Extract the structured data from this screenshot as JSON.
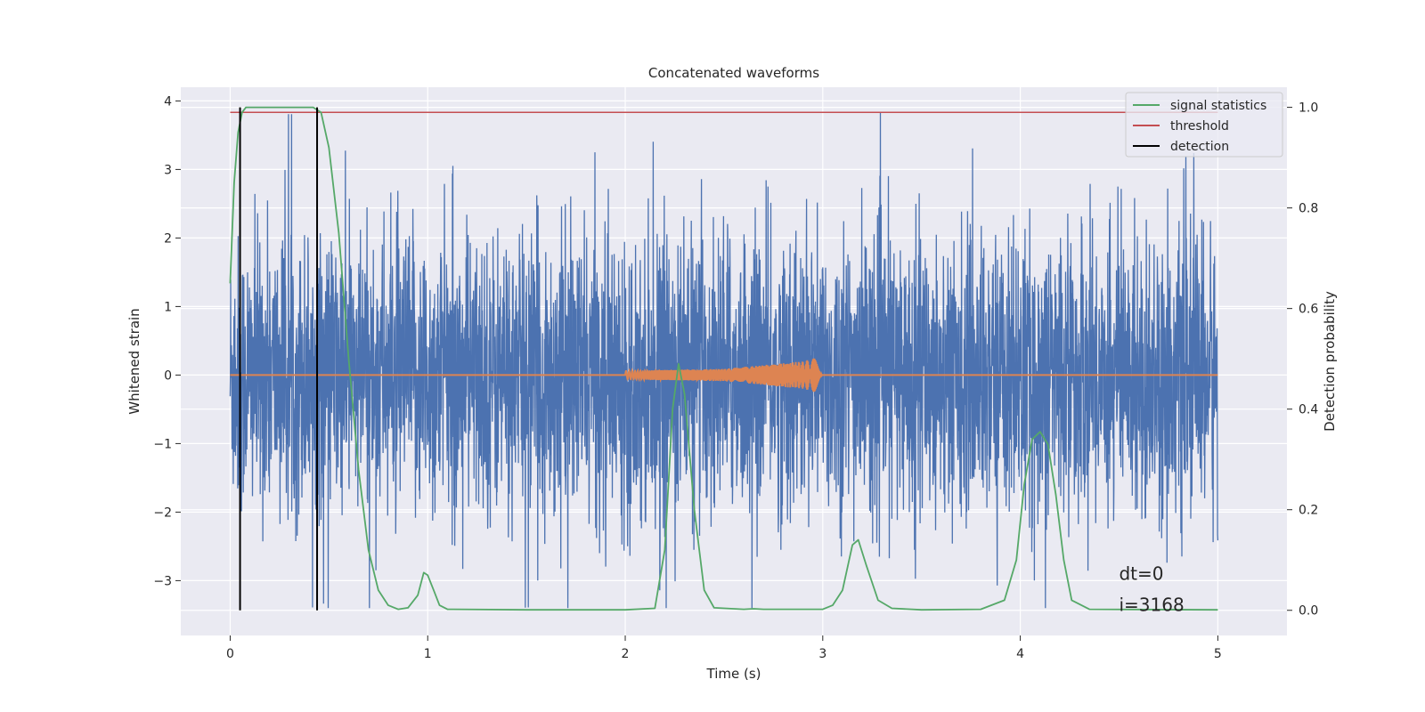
{
  "chart_data": {
    "type": "line",
    "title": "Concatenated waveforms",
    "xlabel": "Time (s)",
    "ylabel": "Whitened strain",
    "y2label": "Detection probability",
    "xlim": [
      -0.25,
      5.35
    ],
    "ylim": [
      -3.8,
      4.2
    ],
    "y2lim": [
      -0.05,
      1.04
    ],
    "xticks": [
      0,
      1,
      2,
      3,
      4,
      5
    ],
    "yticks": [
      -3,
      -2,
      -1,
      0,
      1,
      2,
      3,
      4
    ],
    "y2ticks": [
      0.0,
      0.2,
      0.4,
      0.6,
      0.8,
      1.0
    ],
    "xtick_labels": [
      "0",
      "1",
      "2",
      "3",
      "4",
      "5"
    ],
    "ytick_labels": [
      "−3",
      "−2",
      "−1",
      "0",
      "1",
      "2",
      "3",
      "4"
    ],
    "y2tick_labels": [
      "0.0",
      "0.2",
      "0.4",
      "0.6",
      "0.8",
      "1.0"
    ],
    "grid": true,
    "legend_position": "top-right",
    "series": [
      {
        "name": "",
        "axis": "left",
        "color": "#4c72b0",
        "description_type": "noise",
        "x_range": [
          0,
          5
        ],
        "typical_amplitude": 1.0,
        "peak_max": 3.85,
        "peak_min": -3.4
      },
      {
        "name": "",
        "axis": "left",
        "color": "#dd8452",
        "x": [
          0,
          2,
          2.5,
          2.9,
          3.0,
          3.0001,
          5
        ],
        "amplitude": [
          0,
          0.06,
          0.09,
          0.2,
          0.28,
          0,
          0
        ],
        "note": "chirp burst between 2 and 3 s"
      },
      {
        "name": "signal statistics",
        "axis": "right",
        "color": "#55a868",
        "x": [
          0,
          0.02,
          0.04,
          0.06,
          0.08,
          0.1,
          0.2,
          0.3,
          0.42,
          0.46,
          0.5,
          0.55,
          0.6,
          0.65,
          0.7,
          0.75,
          0.8,
          0.85,
          0.9,
          0.95,
          0.98,
          1.0,
          1.03,
          1.06,
          1.1,
          1.5,
          2.0,
          2.15,
          2.2,
          2.24,
          2.27,
          2.3,
          2.35,
          2.4,
          2.45,
          2.6,
          2.65,
          2.7,
          3.0,
          3.05,
          3.1,
          3.15,
          3.18,
          3.22,
          3.28,
          3.35,
          3.5,
          3.8,
          3.92,
          3.98,
          4.02,
          4.06,
          4.1,
          4.14,
          4.18,
          4.22,
          4.26,
          4.35,
          5.0
        ],
        "y": [
          0.65,
          0.85,
          0.95,
          0.99,
          1.0,
          1.0,
          1.0,
          1.0,
          1.0,
          0.99,
          0.92,
          0.75,
          0.5,
          0.28,
          0.12,
          0.04,
          0.01,
          0.002,
          0.005,
          0.03,
          0.075,
          0.07,
          0.04,
          0.01,
          0.002,
          0.001,
          0.001,
          0.004,
          0.12,
          0.4,
          0.49,
          0.43,
          0.2,
          0.04,
          0.005,
          0.002,
          0.003,
          0.002,
          0.002,
          0.01,
          0.04,
          0.13,
          0.14,
          0.09,
          0.02,
          0.004,
          0.001,
          0.002,
          0.02,
          0.1,
          0.25,
          0.34,
          0.355,
          0.33,
          0.23,
          0.1,
          0.02,
          0.002,
          0.001
        ]
      },
      {
        "name": "threshold",
        "axis": "right",
        "color": "#c44e52",
        "x": [
          0,
          5
        ],
        "y": [
          0.99,
          0.99
        ]
      },
      {
        "name": "detection",
        "axis": "right",
        "color": "#000000",
        "type": "vlines",
        "x": [
          0.05,
          0.44
        ],
        "ymin": 0.0,
        "ymax": 1.0
      }
    ],
    "annotations": [
      {
        "text": "dt=0",
        "x": 4.5,
        "y": -2.6
      },
      {
        "text": "i=3168",
        "x": 4.5,
        "y": -2.95
      }
    ]
  }
}
